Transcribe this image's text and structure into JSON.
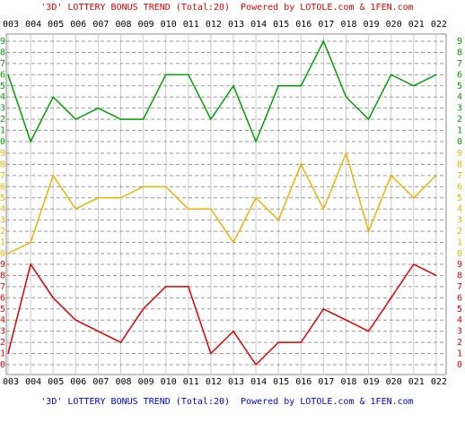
{
  "chart_data": {
    "type": "line",
    "title": "'3D' LOTTERY BONUS TREND (Total:20)  Powered by LOTOLE.com & 1FEN.com",
    "categories": [
      "003",
      "004",
      "005",
      "006",
      "007",
      "008",
      "009",
      "010",
      "011",
      "012",
      "013",
      "014",
      "015",
      "016",
      "017",
      "018",
      "019",
      "020",
      "021",
      "022"
    ],
    "grid": true,
    "panels": [
      {
        "color": "#00a000",
        "values": [
          6,
          0,
          4,
          2,
          3,
          2,
          2,
          6,
          6,
          2,
          5,
          0,
          5,
          5,
          9,
          4,
          2,
          6,
          5,
          6
        ],
        "ylim": [
          0,
          9
        ],
        "yticks": [
          0,
          1,
          2,
          3,
          4,
          5,
          6,
          7,
          8,
          9
        ]
      },
      {
        "color": "#f0b000",
        "values": [
          0,
          1,
          7,
          4,
          5,
          5,
          6,
          6,
          4,
          4,
          1,
          5,
          3,
          8,
          4,
          9,
          2,
          7,
          5,
          7
        ],
        "ylim": [
          0,
          9
        ],
        "yticks": [
          0,
          1,
          2,
          3,
          4,
          5,
          6,
          7,
          8,
          9
        ]
      },
      {
        "color": "#e00000",
        "values": [
          1,
          9,
          6,
          4,
          3,
          2,
          5,
          7,
          7,
          1,
          3,
          0,
          2,
          2,
          5,
          4,
          3,
          6,
          9,
          8
        ],
        "ylim": [
          0,
          9
        ],
        "yticks": [
          0,
          1,
          2,
          3,
          4,
          5,
          6,
          7,
          8,
          9
        ]
      }
    ]
  }
}
